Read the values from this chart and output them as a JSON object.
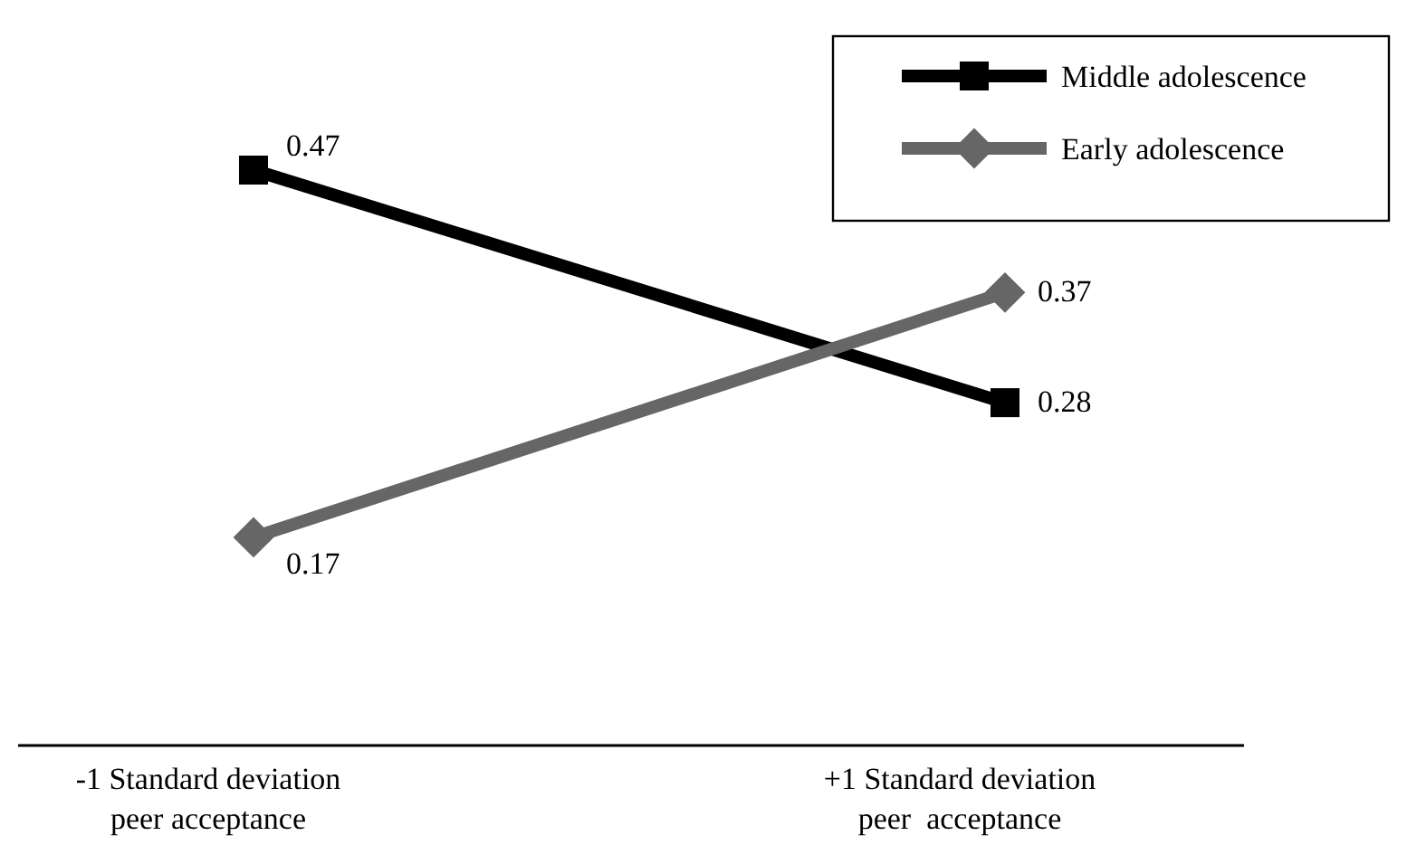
{
  "chart_data": {
    "type": "line",
    "categories": [
      "-1 Standard deviation\npeer acceptance",
      "+1 Standard deviation\npeer  acceptance"
    ],
    "series": [
      {
        "name": "Middle adolescence",
        "color": "#000000",
        "values": [
          0.47,
          0.28
        ],
        "marker": "square"
      },
      {
        "name": "Early adolescence",
        "color": "#666666",
        "values": [
          0.17,
          0.37
        ],
        "marker": "diamond"
      }
    ],
    "data_labels": true,
    "legend": "top right",
    "tick_labels": "x",
    "line_style": "solid"
  }
}
